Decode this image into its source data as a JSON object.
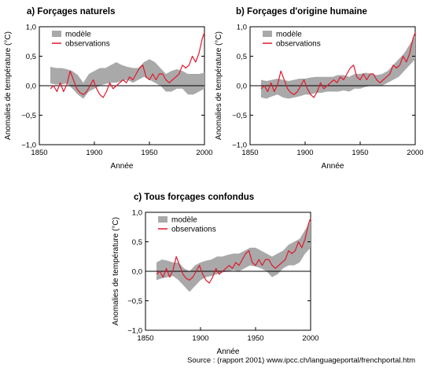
{
  "source": "Source : (rapport 2001) www.ipcc.ch/languageportal/frenchportal.htm",
  "colors": {
    "model": "#a9a9a9",
    "observations": "#e0182d",
    "zero_line": "#000000"
  },
  "chart_data": [
    {
      "type": "area",
      "title": "a) Forçages  naturels",
      "xlabel": "Année",
      "ylabel": "Anomalies de température (°C)",
      "xlim": [
        1850,
        2000
      ],
      "ylim": [
        -1.0,
        1.0
      ],
      "xticks": [
        "1850",
        "1900",
        "1950",
        "2000"
      ],
      "yticks": [
        "1,0",
        "0,5",
        "0,0",
        "−0,5",
        "−1,0"
      ],
      "legend": [
        "modèle",
        "observations"
      ],
      "legend_position": "top-left",
      "grid": false,
      "series": [
        {
          "name": "modèle",
          "x": [
            1860,
            1865,
            1870,
            1875,
            1880,
            1885,
            1890,
            1895,
            1900,
            1905,
            1910,
            1915,
            1920,
            1925,
            1930,
            1935,
            1940,
            1945,
            1950,
            1955,
            1960,
            1965,
            1970,
            1975,
            1980,
            1985,
            1990,
            1995,
            2000
          ],
          "low": [
            0.04,
            0.02,
            0.02,
            0.04,
            -0.05,
            -0.15,
            -0.22,
            -0.1,
            -0.05,
            0.0,
            0.03,
            0.05,
            0.05,
            0.08,
            0.1,
            0.05,
            0.1,
            0.15,
            0.1,
            0.05,
            0.0,
            -0.1,
            -0.1,
            -0.05,
            -0.05,
            -0.15,
            -0.15,
            -0.1,
            -0.05
          ],
          "high": [
            0.32,
            0.3,
            0.3,
            0.28,
            0.25,
            0.18,
            0.05,
            0.2,
            0.25,
            0.3,
            0.3,
            0.35,
            0.4,
            0.35,
            0.32,
            0.3,
            0.3,
            0.4,
            0.45,
            0.4,
            0.3,
            0.2,
            0.25,
            0.28,
            0.25,
            0.2,
            0.2,
            0.2,
            0.22
          ]
        },
        {
          "name": "observations",
          "x": [
            1860,
            1863,
            1866,
            1869,
            1872,
            1875,
            1878,
            1881,
            1884,
            1887,
            1890,
            1893,
            1896,
            1899,
            1902,
            1905,
            1908,
            1911,
            1914,
            1917,
            1920,
            1923,
            1926,
            1929,
            1932,
            1935,
            1938,
            1941,
            1944,
            1947,
            1950,
            1953,
            1956,
            1959,
            1962,
            1965,
            1968,
            1971,
            1974,
            1977,
            1980,
            1983,
            1986,
            1989,
            1992,
            1995,
            1998,
            2000
          ],
          "values": [
            -0.05,
            0.0,
            -0.1,
            0.05,
            -0.1,
            0.02,
            0.25,
            0.1,
            -0.05,
            -0.12,
            -0.15,
            -0.1,
            0.0,
            0.1,
            -0.05,
            -0.15,
            -0.2,
            -0.1,
            0.05,
            -0.05,
            0.0,
            0.05,
            0.1,
            0.05,
            0.15,
            0.1,
            0.2,
            0.3,
            0.35,
            0.15,
            0.1,
            0.2,
            0.1,
            0.2,
            0.2,
            0.1,
            0.05,
            0.1,
            0.15,
            0.2,
            0.35,
            0.3,
            0.35,
            0.5,
            0.4,
            0.55,
            0.8,
            0.9
          ]
        }
      ]
    },
    {
      "type": "area",
      "title": "b) Forçages d'origine humaine",
      "xlabel": "Année",
      "ylabel": "Anomalies de température (°C)",
      "xlim": [
        1850,
        2000
      ],
      "ylim": [
        -1.0,
        1.0
      ],
      "xticks": [
        "1850",
        "1900",
        "1950",
        "2000"
      ],
      "yticks": [
        "1,0",
        "0,5",
        "0,0",
        "−0,5",
        "−1,0"
      ],
      "legend": [
        "modèle",
        "observations"
      ],
      "legend_position": "top-left",
      "grid": false,
      "series": [
        {
          "name": "modèle",
          "x": [
            1860,
            1865,
            1870,
            1875,
            1880,
            1885,
            1890,
            1895,
            1900,
            1905,
            1910,
            1915,
            1920,
            1925,
            1930,
            1935,
            1940,
            1945,
            1950,
            1955,
            1960,
            1965,
            1970,
            1975,
            1980,
            1985,
            1990,
            1995,
            2000
          ],
          "low": [
            -0.2,
            -0.22,
            -0.18,
            -0.15,
            -0.2,
            -0.22,
            -0.2,
            -0.18,
            -0.15,
            -0.15,
            -0.12,
            -0.12,
            -0.1,
            -0.1,
            -0.1,
            -0.08,
            -0.1,
            -0.05,
            -0.05,
            -0.02,
            0.0,
            0.0,
            0.0,
            0.05,
            0.1,
            0.15,
            0.25,
            0.35,
            0.45
          ],
          "high": [
            0.1,
            0.08,
            0.1,
            0.12,
            0.1,
            0.08,
            0.1,
            0.12,
            0.12,
            0.14,
            0.15,
            0.15,
            0.15,
            0.15,
            0.18,
            0.18,
            0.15,
            0.2,
            0.2,
            0.22,
            0.2,
            0.18,
            0.2,
            0.25,
            0.35,
            0.45,
            0.55,
            0.7,
            0.85
          ]
        },
        {
          "name": "observations",
          "x": [
            1860,
            1863,
            1866,
            1869,
            1872,
            1875,
            1878,
            1881,
            1884,
            1887,
            1890,
            1893,
            1896,
            1899,
            1902,
            1905,
            1908,
            1911,
            1914,
            1917,
            1920,
            1923,
            1926,
            1929,
            1932,
            1935,
            1938,
            1941,
            1944,
            1947,
            1950,
            1953,
            1956,
            1959,
            1962,
            1965,
            1968,
            1971,
            1974,
            1977,
            1980,
            1983,
            1986,
            1989,
            1992,
            1995,
            1998,
            2000
          ],
          "values": [
            -0.05,
            0.0,
            -0.1,
            0.05,
            -0.1,
            0.02,
            0.25,
            0.1,
            -0.05,
            -0.12,
            -0.15,
            -0.1,
            0.0,
            0.1,
            -0.05,
            -0.15,
            -0.2,
            -0.1,
            0.05,
            -0.05,
            0.0,
            0.05,
            0.1,
            0.05,
            0.15,
            0.1,
            0.2,
            0.3,
            0.35,
            0.15,
            0.1,
            0.2,
            0.1,
            0.2,
            0.2,
            0.1,
            0.05,
            0.1,
            0.15,
            0.2,
            0.35,
            0.3,
            0.35,
            0.5,
            0.4,
            0.55,
            0.8,
            0.9
          ]
        }
      ]
    },
    {
      "type": "area",
      "title": "c) Tous forçages confondus",
      "xlabel": "Année",
      "ylabel": "Anomalies de température (°C)",
      "xlim": [
        1850,
        2000
      ],
      "ylim": [
        -1.0,
        1.0
      ],
      "xticks": [
        "1850",
        "1900",
        "1950",
        "2000"
      ],
      "yticks": [
        "1,0",
        "0,5",
        "0,0",
        "−0,5",
        "−1,0"
      ],
      "legend": [
        "modèle",
        "observations"
      ],
      "legend_position": "top-left",
      "grid": false,
      "series": [
        {
          "name": "modèle",
          "x": [
            1860,
            1865,
            1870,
            1875,
            1880,
            1885,
            1890,
            1895,
            1900,
            1905,
            1910,
            1915,
            1920,
            1925,
            1930,
            1935,
            1940,
            1945,
            1950,
            1955,
            1960,
            1965,
            1970,
            1975,
            1980,
            1985,
            1990,
            1995,
            2000
          ],
          "low": [
            -0.15,
            -0.12,
            -0.1,
            -0.08,
            -0.15,
            -0.25,
            -0.35,
            -0.25,
            -0.15,
            -0.1,
            -0.08,
            -0.05,
            -0.02,
            0.0,
            0.02,
            0.0,
            0.05,
            0.1,
            0.08,
            0.05,
            0.0,
            -0.1,
            -0.05,
            0.05,
            0.1,
            0.1,
            0.15,
            0.3,
            0.4
          ],
          "high": [
            0.15,
            0.2,
            0.18,
            0.15,
            0.15,
            0.05,
            0.0,
            0.1,
            0.15,
            0.18,
            0.2,
            0.25,
            0.25,
            0.28,
            0.3,
            0.3,
            0.35,
            0.4,
            0.4,
            0.35,
            0.3,
            0.25,
            0.3,
            0.35,
            0.45,
            0.5,
            0.55,
            0.7,
            0.85
          ]
        },
        {
          "name": "observations",
          "x": [
            1860,
            1863,
            1866,
            1869,
            1872,
            1875,
            1878,
            1881,
            1884,
            1887,
            1890,
            1893,
            1896,
            1899,
            1902,
            1905,
            1908,
            1911,
            1914,
            1917,
            1920,
            1923,
            1926,
            1929,
            1932,
            1935,
            1938,
            1941,
            1944,
            1947,
            1950,
            1953,
            1956,
            1959,
            1962,
            1965,
            1968,
            1971,
            1974,
            1977,
            1980,
            1983,
            1986,
            1989,
            1992,
            1995,
            1998,
            2000
          ],
          "values": [
            -0.05,
            0.0,
            -0.1,
            0.05,
            -0.1,
            0.02,
            0.25,
            0.1,
            -0.05,
            -0.12,
            -0.15,
            -0.1,
            0.0,
            0.1,
            -0.05,
            -0.15,
            -0.2,
            -0.1,
            0.05,
            -0.05,
            0.0,
            0.05,
            0.1,
            0.05,
            0.15,
            0.1,
            0.2,
            0.3,
            0.35,
            0.15,
            0.1,
            0.2,
            0.1,
            0.2,
            0.2,
            0.1,
            0.05,
            0.1,
            0.15,
            0.2,
            0.35,
            0.3,
            0.35,
            0.5,
            0.4,
            0.55,
            0.8,
            0.9
          ]
        }
      ]
    }
  ]
}
